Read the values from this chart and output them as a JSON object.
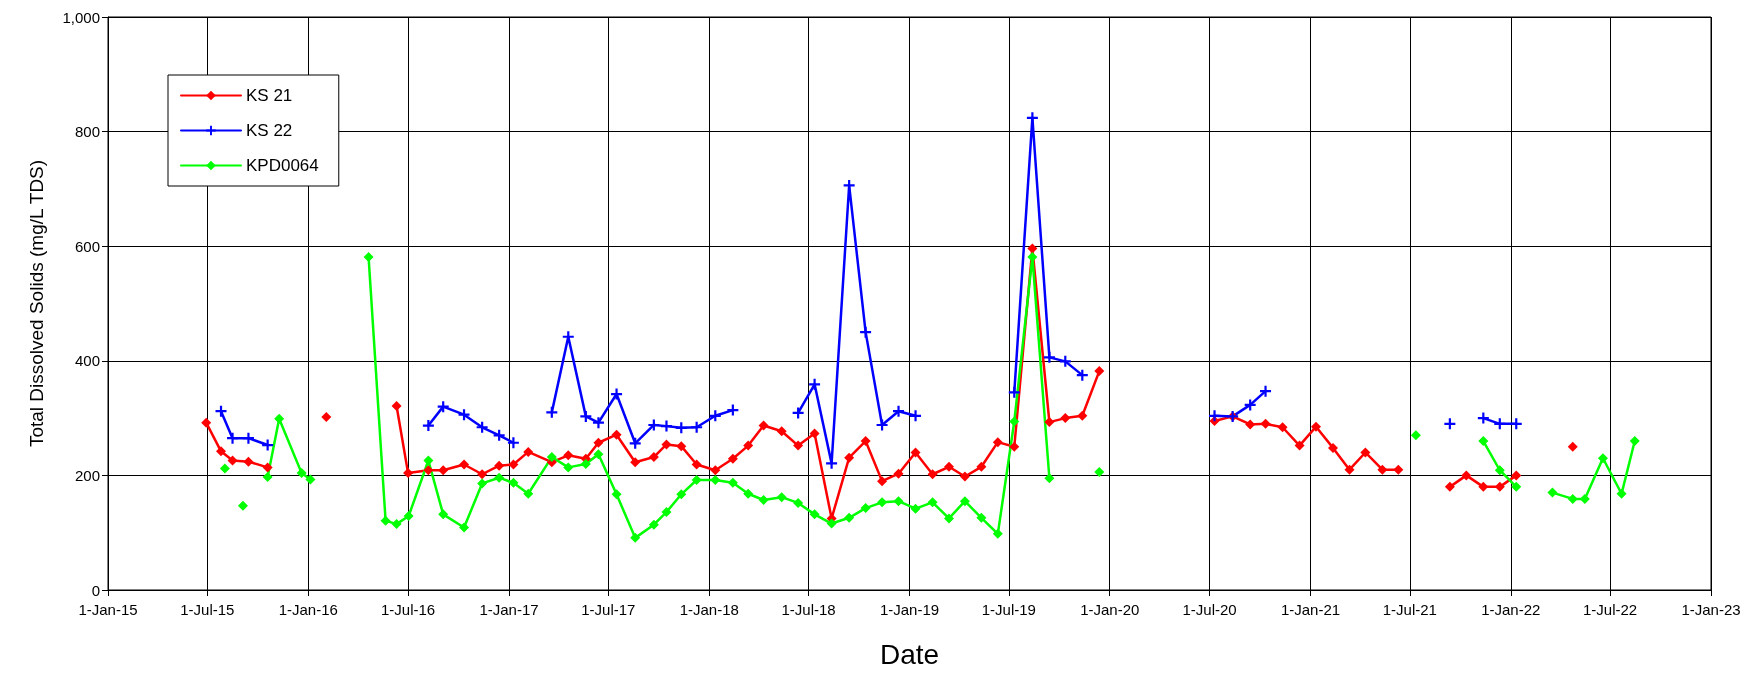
{
  "chart_data": {
    "type": "line",
    "xlabel": "Date",
    "ylabel": "Total Dissolved Solids (mg/L TDS)",
    "xlim": [
      "2015-01-01",
      "2023-01-01"
    ],
    "xticks": [
      {
        "value": "2015-01-01",
        "label": "1-Jan-15"
      },
      {
        "value": "2015-07-01",
        "label": "1-Jul-15"
      },
      {
        "value": "2016-01-01",
        "label": "1-Jan-16"
      },
      {
        "value": "2016-07-01",
        "label": "1-Jul-16"
      },
      {
        "value": "2017-01-01",
        "label": "1-Jan-17"
      },
      {
        "value": "2017-07-01",
        "label": "1-Jul-17"
      },
      {
        "value": "2018-01-01",
        "label": "1-Jan-18"
      },
      {
        "value": "2018-07-01",
        "label": "1-Jul-18"
      },
      {
        "value": "2019-01-01",
        "label": "1-Jan-19"
      },
      {
        "value": "2019-07-01",
        "label": "1-Jul-19"
      },
      {
        "value": "2020-01-01",
        "label": "1-Jan-20"
      },
      {
        "value": "2020-07-01",
        "label": "1-Jul-20"
      },
      {
        "value": "2021-01-01",
        "label": "1-Jan-21"
      },
      {
        "value": "2021-07-01",
        "label": "1-Jul-21"
      },
      {
        "value": "2022-01-01",
        "label": "1-Jan-22"
      },
      {
        "value": "2022-07-01",
        "label": "1-Jul-22"
      },
      {
        "value": "2023-01-01",
        "label": "1-Jan-23"
      }
    ],
    "ylim": [
      0,
      1000
    ],
    "yticks": [
      0,
      200,
      400,
      600,
      800,
      {
        "value": 1000,
        "label": "1,000"
      }
    ],
    "grid": true,
    "legend": "top left",
    "line_style": "solid",
    "series": [
      {
        "name": "KS 21",
        "color": "#ff0000",
        "marker": "diamond",
        "x": [
          "2015-06-29",
          "2015-07-26",
          "2015-08-16",
          "2015-09-14",
          "2015-10-19",
          "2015-12-01",
          "2016-02-03",
          "2016-04-01",
          "2016-06-10",
          "2016-07-01",
          "2016-08-07",
          "2016-09-03",
          "2016-10-11",
          "2016-11-13",
          "2016-12-14",
          "2017-01-09",
          "2017-02-05",
          "2017-03-20",
          "2017-04-19",
          "2017-05-21",
          "2017-06-13",
          "2017-07-16",
          "2017-08-19",
          "2017-09-22",
          "2017-10-15",
          "2017-11-11",
          "2017-12-09",
          "2018-01-12",
          "2018-02-13",
          "2018-03-13",
          "2018-04-10",
          "2018-05-13",
          "2018-06-12",
          "2018-07-12",
          "2018-08-12",
          "2018-09-13",
          "2018-10-13",
          "2018-11-12",
          "2018-12-12",
          "2019-01-12",
          "2019-02-12",
          "2019-03-14",
          "2019-04-12",
          "2019-05-12",
          "2019-06-11",
          "2019-07-11",
          "2019-08-13",
          "2019-09-13",
          "2019-10-12",
          "2019-11-12",
          "2019-12-13",
          "2020-03-01",
          "2020-07-10",
          "2020-08-12",
          "2020-09-13",
          "2020-10-11",
          "2020-11-11",
          "2020-12-12",
          "2021-01-11",
          "2021-02-11",
          "2021-03-13",
          "2021-04-11",
          "2021-05-12",
          "2021-06-10",
          "2021-08-01",
          "2021-09-12",
          "2021-10-12",
          "2021-11-12",
          "2021-12-12",
          "2022-01-11",
          "2022-03-01",
          "2022-04-24"
        ],
        "values": [
          292,
          242,
          226,
          224,
          214,
          null,
          302,
          null,
          321,
          204,
          209,
          209,
          219,
          202,
          217,
          219,
          241,
          223,
          235,
          229,
          257,
          271,
          223,
          232,
          254,
          251,
          219,
          209,
          229,
          252,
          287,
          277,
          252,
          273,
          125,
          231,
          260,
          190,
          203,
          240,
          202,
          215,
          198,
          215,
          258,
          250,
          596,
          293,
          300,
          304,
          382,
          null,
          295,
          303,
          289,
          290,
          284,
          252,
          285,
          248,
          210,
          240,
          210,
          210,
          null,
          180,
          200,
          180,
          180,
          200,
          null,
          250
        ]
      },
      {
        "name": "KS 22",
        "color": "#0000ff",
        "marker": "cross",
        "x": [
          "2015-07-26",
          "2015-08-16",
          "2015-09-14",
          "2015-10-19",
          "2016-03-01",
          "2016-08-07",
          "2016-09-03",
          "2016-10-11",
          "2016-11-13",
          "2016-12-14",
          "2017-01-09",
          "2017-02-10",
          "2017-03-20",
          "2017-04-19",
          "2017-05-21",
          "2017-06-13",
          "2017-07-16",
          "2017-08-19",
          "2017-09-22",
          "2017-10-15",
          "2017-11-11",
          "2017-12-09",
          "2018-01-12",
          "2018-02-13",
          "2018-04-15",
          "2018-06-12",
          "2018-07-12",
          "2018-08-12",
          "2018-09-13",
          "2018-10-13",
          "2018-11-12",
          "2018-12-12",
          "2019-01-12",
          "2019-04-15",
          "2019-07-11",
          "2019-08-13",
          "2019-09-13",
          "2019-10-12",
          "2019-11-12",
          "2020-03-01",
          "2020-07-10",
          "2020-08-12",
          "2020-09-13",
          "2020-10-11",
          "2021-03-01",
          "2021-09-12",
          "2021-10-15",
          "2021-11-12",
          "2021-12-12",
          "2022-01-11"
        ],
        "values": [
          312,
          265,
          265,
          253,
          null,
          287,
          320,
          306,
          284,
          270,
          257,
          null,
          310,
          442,
          303,
          292,
          342,
          256,
          288,
          286,
          283,
          284,
          304,
          314,
          null,
          309,
          359,
          221,
          706,
          450,
          288,
          312,
          304,
          null,
          345,
          824,
          406,
          399,
          375,
          null,
          304,
          303,
          323,
          347,
          null,
          290,
          null,
          300,
          290,
          290
        ]
      },
      {
        "name": "KPD0064",
        "color": "#00ff00",
        "marker": "diamond",
        "x": [
          "2015-08-02",
          "2015-08-18",
          "2015-09-04",
          "2015-10-01",
          "2015-10-19",
          "2015-11-09",
          "2015-12-20",
          "2016-01-05",
          "2016-03-01",
          "2016-04-20",
          "2016-05-21",
          "2016-06-10",
          "2016-07-02",
          "2016-08-07",
          "2016-09-03",
          "2016-10-11",
          "2016-11-13",
          "2016-12-14",
          "2017-01-09",
          "2017-02-05",
          "2017-03-20",
          "2017-04-19",
          "2017-05-21",
          "2017-06-13",
          "2017-07-16",
          "2017-08-19",
          "2017-09-22",
          "2017-10-15",
          "2017-11-11",
          "2017-12-09",
          "2018-01-12",
          "2018-02-13",
          "2018-03-13",
          "2018-04-10",
          "2018-05-13",
          "2018-06-12",
          "2018-07-12",
          "2018-08-12",
          "2018-09-13",
          "2018-10-13",
          "2018-11-12",
          "2018-12-12",
          "2019-01-12",
          "2019-02-12",
          "2019-03-14",
          "2019-04-12",
          "2019-05-12",
          "2019-06-11",
          "2019-07-11",
          "2019-08-13",
          "2019-09-13",
          "2019-11-01",
          "2019-12-13",
          "2020-06-01",
          "2021-07-12",
          "2021-09-01",
          "2021-11-12",
          "2021-12-12",
          "2022-01-11",
          "2022-02-15",
          "2022-03-18",
          "2022-04-24",
          "2022-05-16",
          "2022-06-18",
          "2022-07-22",
          "2022-08-15"
        ],
        "values": [
          212,
          null,
          147,
          null,
          197,
          299,
          204,
          193,
          null,
          581,
          121,
          115,
          129,
          226,
          132,
          109,
          186,
          196,
          187,
          168,
          232,
          214,
          220,
          237,
          167,
          91,
          114,
          136,
          167,
          192,
          192,
          187,
          168,
          157,
          162,
          152,
          132,
          116,
          126,
          143,
          153,
          155,
          142,
          153,
          125,
          155,
          126,
          98,
          294,
          581,
          195,
          null,
          206,
          null,
          270,
          null,
          260,
          209,
          180,
          null,
          170,
          159,
          159,
          230,
          168,
          260
        ]
      }
    ]
  }
}
